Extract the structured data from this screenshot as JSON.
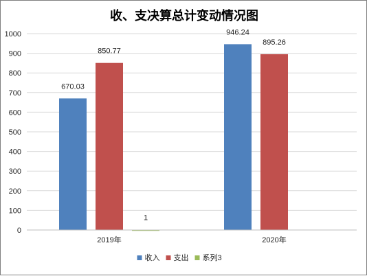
{
  "chart_data": {
    "type": "bar",
    "title": "收、支决算总计变动情况图",
    "categories": [
      "2019年",
      "2020年"
    ],
    "series": [
      {
        "name": "收入",
        "color": "#4f81bd",
        "values": [
          670.03,
          946.24
        ],
        "labels": [
          "670.03",
          "946.24"
        ]
      },
      {
        "name": "支出",
        "color": "#c0504d",
        "values": [
          850.77,
          895.26
        ],
        "labels": [
          "850.77",
          "895.26"
        ]
      },
      {
        "name": "系列3",
        "color": "#9bbb59",
        "values": [
          1,
          null
        ],
        "labels": [
          "1",
          ""
        ]
      }
    ],
    "ylim": [
      0,
      1000
    ],
    "yticks": [
      0,
      100,
      200,
      300,
      400,
      500,
      600,
      700,
      800,
      900,
      1000
    ],
    "grid": true,
    "legend": "bottom-center"
  }
}
